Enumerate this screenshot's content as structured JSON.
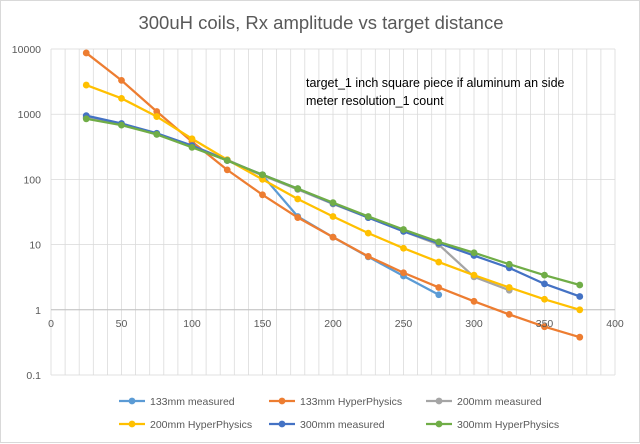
{
  "chart_data": {
    "type": "scatter",
    "title": "300uH coils, Rx amplitude vs target distance",
    "xlabel": "",
    "ylabel": "",
    "x_scale": "linear",
    "y_scale": "log",
    "xlim": [
      0,
      400
    ],
    "ylim": [
      0.1,
      10000
    ],
    "x_ticks": [
      0,
      50,
      100,
      150,
      200,
      250,
      300,
      350,
      400
    ],
    "x_tick_labels": [
      "0",
      "50",
      "100",
      "150",
      "200",
      "250",
      "300",
      "350",
      "400"
    ],
    "y_ticks": [
      0.1,
      1,
      10,
      100,
      1000,
      10000
    ],
    "y_tick_labels": [
      "0.1",
      "1",
      "10",
      "100",
      "1000",
      "10000"
    ],
    "grid": true,
    "legend_position": "bottom",
    "annotations": [
      "target_1 inch square piece if aluminum an side",
      "meter resolution_1 count"
    ],
    "series": [
      {
        "name": "133mm measured",
        "color": "#5b9bd5",
        "x": [
          25,
          50,
          75,
          100,
          125,
          150,
          175,
          200,
          225,
          250,
          275
        ],
        "y": [
          880,
          700,
          500,
          320,
          195,
          115,
          27,
          13,
          6.5,
          3.3,
          1.7
        ]
      },
      {
        "name": "133mm HyperPhysics",
        "color": "#ed7d31",
        "x": [
          25,
          50,
          75,
          100,
          125,
          150,
          175,
          200,
          225,
          250,
          275,
          300,
          325,
          350,
          375
        ],
        "y": [
          8700,
          3300,
          1100,
          380,
          140,
          58,
          26,
          13,
          6.6,
          3.7,
          2.2,
          1.35,
          0.85,
          0.55,
          0.38
        ]
      },
      {
        "name": "200mm measured",
        "color": "#a5a5a5",
        "x": [
          25,
          50,
          75,
          100,
          125,
          150,
          175,
          200,
          225,
          250,
          275,
          300,
          325
        ],
        "y": [
          900,
          700,
          490,
          330,
          200,
          115,
          70,
          42,
          26,
          16,
          10,
          3.2,
          2.0
        ]
      },
      {
        "name": "200mm HyperPhysics",
        "color": "#ffc000",
        "x": [
          25,
          50,
          75,
          100,
          125,
          150,
          175,
          200,
          225,
          250,
          275,
          300,
          325,
          350,
          375
        ],
        "y": [
          2800,
          1750,
          920,
          420,
          200,
          100,
          50,
          27,
          15,
          8.8,
          5.4,
          3.4,
          2.2,
          1.45,
          1.0
        ]
      },
      {
        "name": "300mm measured",
        "color": "#4472c4",
        "x": [
          25,
          50,
          75,
          100,
          125,
          150,
          175,
          200,
          225,
          250,
          275,
          300,
          325,
          350,
          375
        ],
        "y": [
          950,
          720,
          510,
          330,
          195,
          118,
          72,
          43,
          26,
          16,
          10.5,
          6.8,
          4.4,
          2.5,
          1.6
        ]
      },
      {
        "name": "300mm HyperPhysics",
        "color": "#70ad47",
        "x": [
          25,
          50,
          75,
          100,
          125,
          150,
          175,
          200,
          225,
          250,
          275,
          300,
          325,
          350,
          375
        ],
        "y": [
          850,
          680,
          490,
          310,
          195,
          118,
          72,
          44,
          27,
          17,
          11,
          7.5,
          5.0,
          3.4,
          2.4
        ]
      }
    ]
  }
}
